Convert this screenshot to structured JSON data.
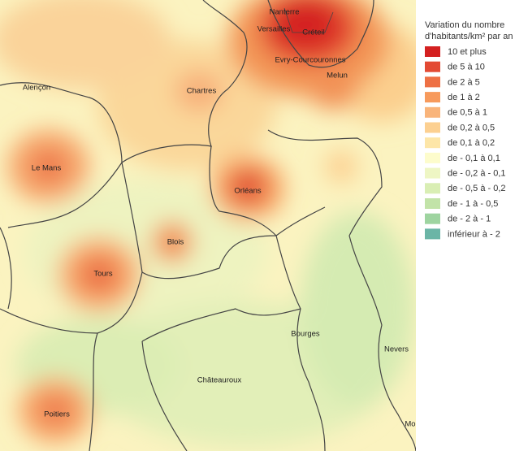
{
  "legend": {
    "title": [
      "Variation du nombre",
      "d'habitants/km² par an"
    ],
    "items": [
      {
        "label": "10 et plus",
        "color": "#d42020"
      },
      {
        "label": "de 5 à 10",
        "color": "#e34a33"
      },
      {
        "label": "de 2 à 5",
        "color": "#ee7044"
      },
      {
        "label": "de 1 à 2",
        "color": "#f79a5c"
      },
      {
        "label": "de 0,5 à 1",
        "color": "#f9b47a"
      },
      {
        "label": "de 0,2 à 0,5",
        "color": "#fcd091"
      },
      {
        "label": "de 0,1 à 0,2",
        "color": "#fde6a8"
      },
      {
        "label": "de - 0,1 à 0,1",
        "color": "#fdfccc"
      },
      {
        "label": "de - 0,2 à - 0,1",
        "color": "#eef6c4"
      },
      {
        "label": "de - 0,5 à - 0,2",
        "color": "#d9eeb4"
      },
      {
        "label": "de - 1 à - 0,5",
        "color": "#c2e3a8"
      },
      {
        "label": "de - 2 à - 1",
        "color": "#9ed4a0"
      },
      {
        "label": "inférieur à - 2",
        "color": "#6bb5a6"
      }
    ]
  },
  "cities": [
    "Nanterre",
    "Versailles",
    "Créteil",
    "Evry-Courcouronnes",
    "Melun",
    "Alençon",
    "Chartres",
    "Le Mans",
    "Orléans",
    "Blois",
    "Tours",
    "Bourges",
    "Nevers",
    "Châteauroux",
    "Poitiers",
    "Mo"
  ]
}
